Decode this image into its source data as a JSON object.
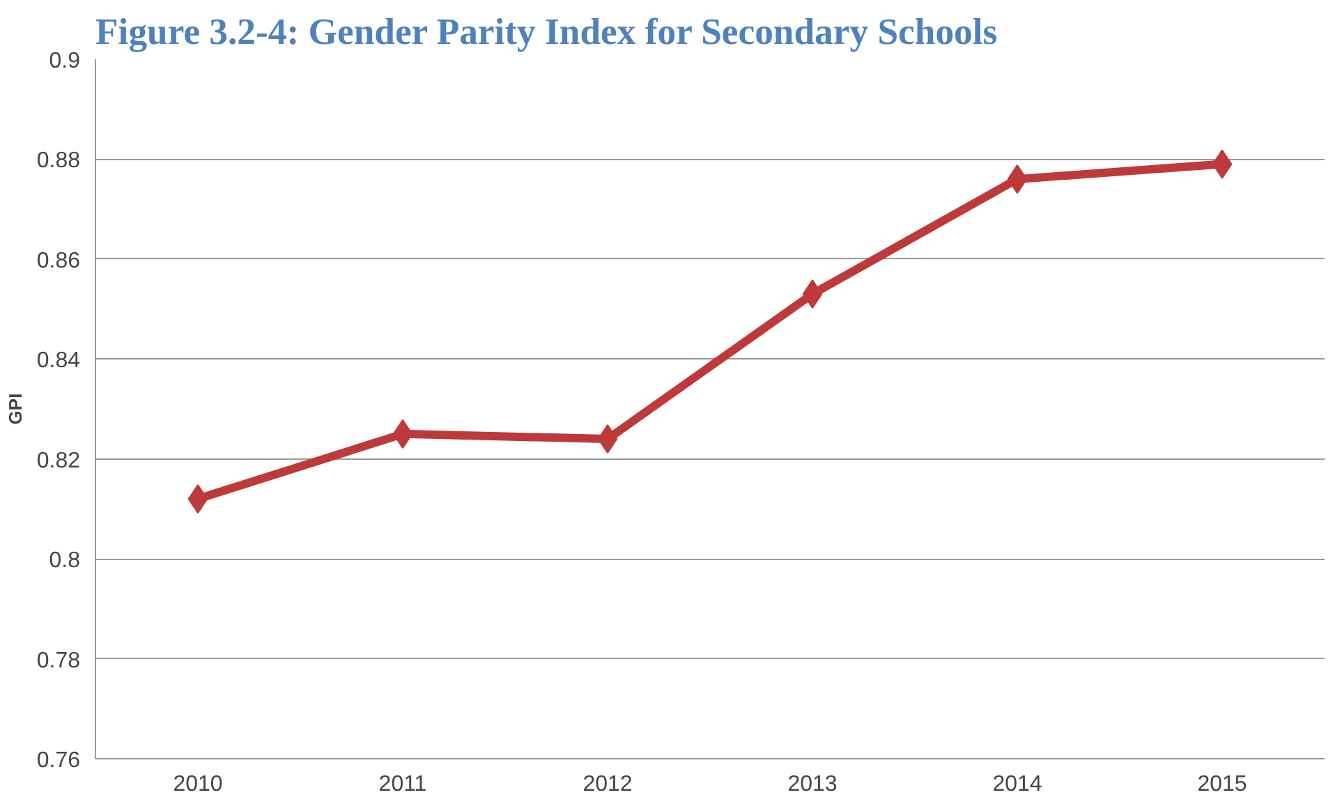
{
  "chart_data": {
    "type": "line",
    "title": "Figure 3.2-4: Gender Parity Index for Secondary Schools",
    "ylabel": "GPI",
    "categories": [
      "2010",
      "2011",
      "2012",
      "2013",
      "2014",
      "2015"
    ],
    "series": [
      {
        "color": "#be3a3a",
        "values": [
          0.812,
          0.825,
          0.824,
          0.853,
          0.876,
          0.879
        ]
      }
    ],
    "ylim": [
      0.76,
      0.9
    ],
    "yticks": [
      0.76,
      0.78,
      {
        "value": 0.8,
        "label": "0.8"
      },
      0.82,
      0.84,
      0.86,
      0.88,
      {
        "value": 0.9,
        "label": "0.9"
      }
    ],
    "grid": "y",
    "marker": "diamond",
    "line_style": "solid"
  }
}
